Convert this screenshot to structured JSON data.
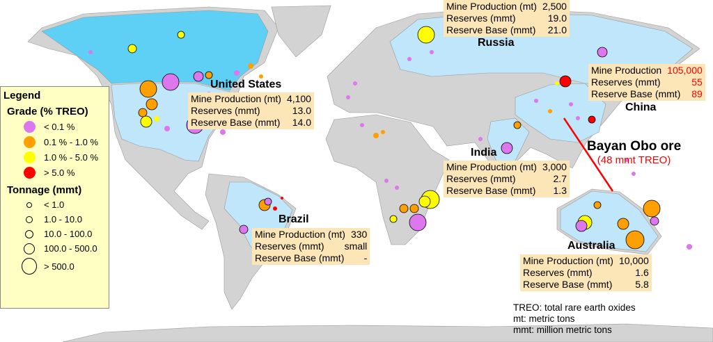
{
  "legend": {
    "title": "Legend",
    "grade_title": "Grade (% TREO)",
    "grades": [
      {
        "label": "< 0.1 %",
        "color": "#dd77ee"
      },
      {
        "label": "0.1 % - 1.0 %",
        "color": "#ff9f00"
      },
      {
        "label": "1.0 % - 5.0 %",
        "color": "#ffff00"
      },
      {
        "label": "> 5.0 %",
        "color": "#ff0000"
      }
    ],
    "tonnage_title": "Tonnage (mmt)",
    "tonnages": [
      {
        "label": "< 1.0"
      },
      {
        "label": "1.0  - 10.0"
      },
      {
        "label": "10.0 - 100.0"
      },
      {
        "label": "100.0  - 500.0"
      },
      {
        "label": "> 500.0"
      }
    ]
  },
  "countries": [
    {
      "name": "United States",
      "rows": [
        [
          "Mine Production (mt)",
          "4,100"
        ],
        [
          "Reserves (mmt)",
          "13.0"
        ],
        [
          "Reserve Base (mmt)",
          "14.0"
        ]
      ]
    },
    {
      "name": "Russia",
      "rows": [
        [
          "Mine Production (mt)",
          "2,500"
        ],
        [
          "Reserves (mmt)",
          "19.0"
        ],
        [
          "Reserve Base (mmt)",
          "21.0"
        ]
      ]
    },
    {
      "name": "China",
      "rows": [
        [
          "Mine Production",
          "105,000"
        ],
        [
          "Reserves (mmt)",
          "55"
        ],
        [
          "Reserve Base (mmt)",
          "89"
        ]
      ]
    },
    {
      "name": "India",
      "rows": [
        [
          "Mine Production (mt)",
          "3,000"
        ],
        [
          "Reserves (mmt)",
          "2.7"
        ],
        [
          "Reserve Base (mmt)",
          "1.3"
        ]
      ]
    },
    {
      "name": "Brazil",
      "rows": [
        [
          "Mine Production (mt)",
          "330"
        ],
        [
          "Reserves (mmt)",
          "small"
        ],
        [
          "Reserve Base (mmt)",
          "-"
        ]
      ]
    },
    {
      "name": "Australia",
      "rows": [
        [
          "Mine Production (mt)",
          "10,000"
        ],
        [
          "Reserves (mmt)",
          "1.6"
        ],
        [
          "Reserve Base (mmt)",
          "5.8"
        ]
      ]
    }
  ],
  "callout": {
    "title": "Bayan Obo ore",
    "subtitle": "(48 mmt TREO)",
    "color": "#ff0000"
  },
  "notes": [
    "TREO: total rare earth oxides",
    "mt: metric tons",
    "mmt: million metric tons"
  ],
  "colors": {
    "land": "#d3d3d3",
    "highlight": "#bfe6fa",
    "canada": "#5fd0f5",
    "box": "#fce6b8"
  }
}
